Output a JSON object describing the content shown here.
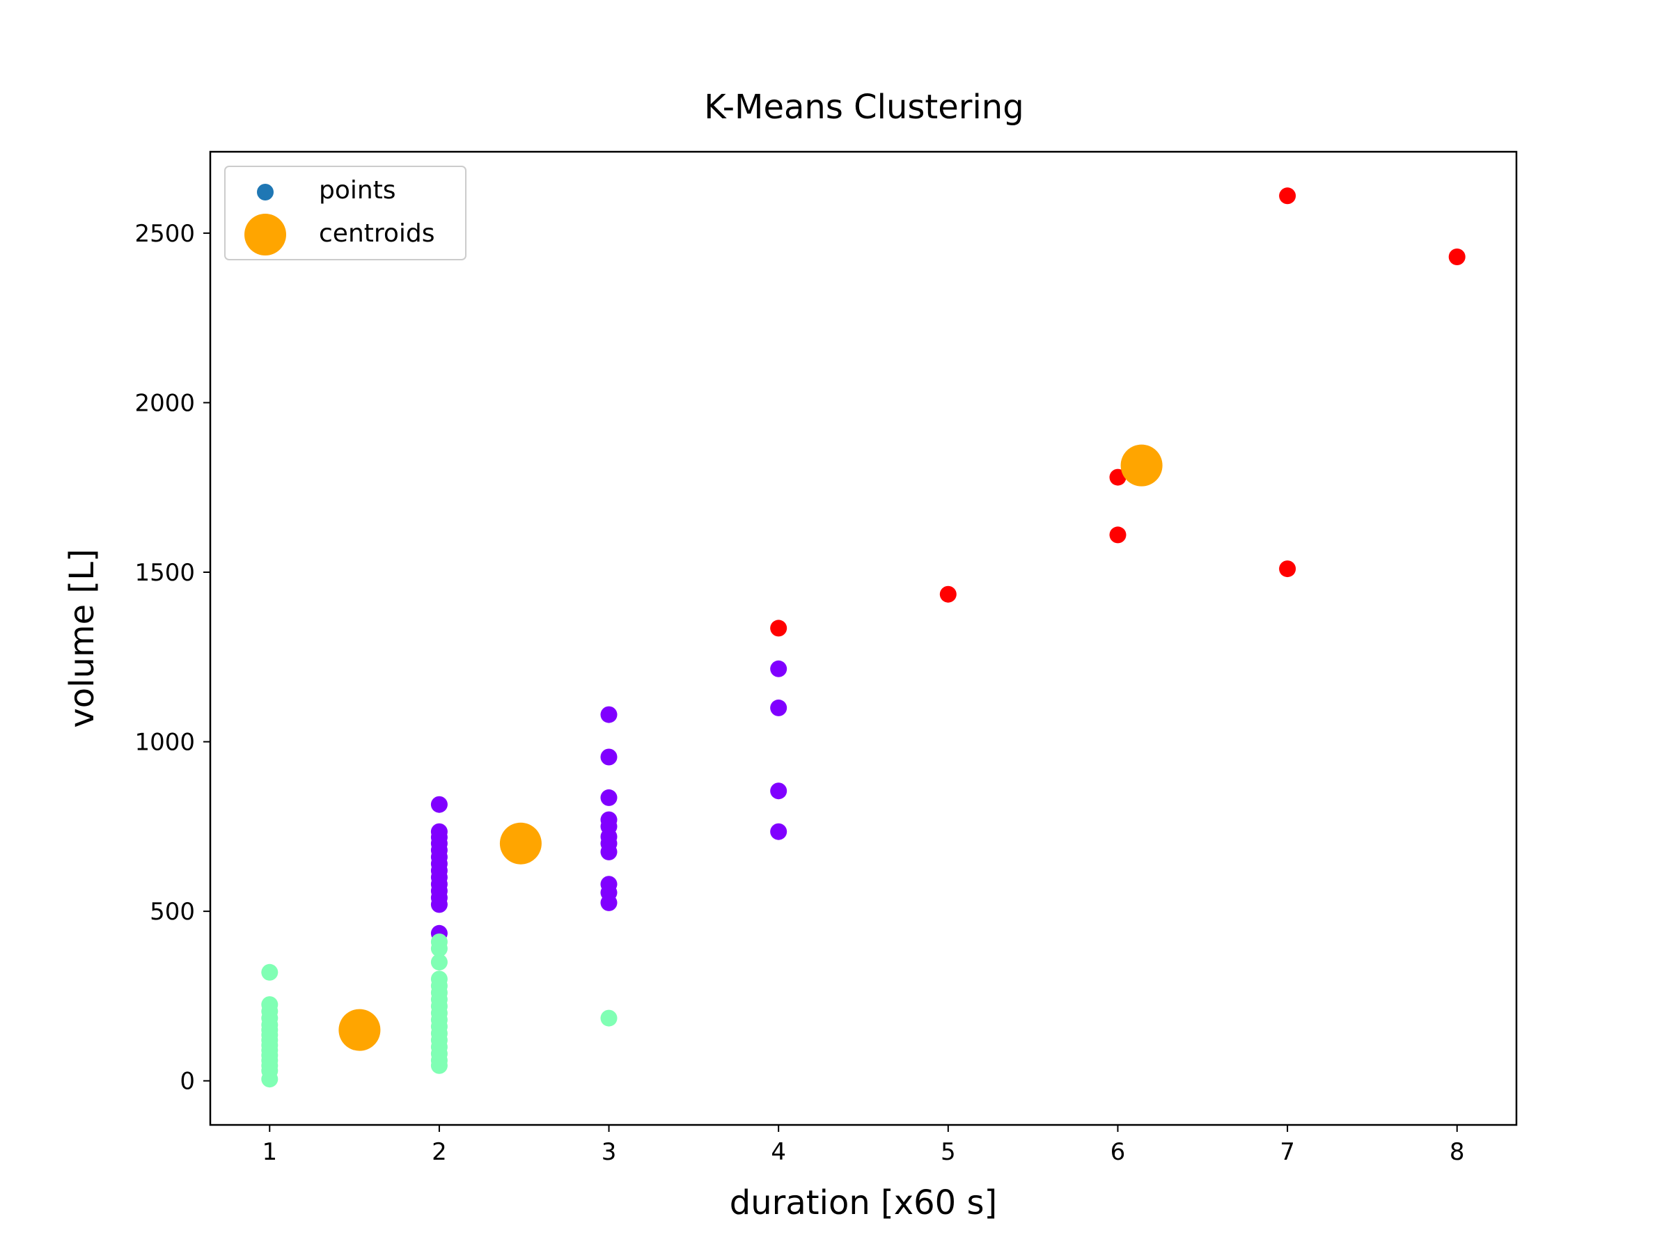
{
  "chart_data": {
    "type": "scatter",
    "title": "K-Means Clustering",
    "xlabel": "duration [x60 s]",
    "ylabel": "volume [L]",
    "xlim": [
      0.65,
      8.35
    ],
    "ylim": [
      -130,
      2740
    ],
    "xticks": [
      1,
      2,
      3,
      4,
      5,
      6,
      7,
      8
    ],
    "yticks": [
      0,
      500,
      1000,
      1500,
      2000,
      2500
    ],
    "grid": false,
    "legend": {
      "placement": "top-left",
      "entries": [
        {
          "label": "points",
          "color": "#1f77b4",
          "marker": "small"
        },
        {
          "label": "centroids",
          "color": "#ffa500",
          "marker": "large"
        }
      ]
    },
    "colors": {
      "cluster_0": "#8000ff",
      "cluster_1": "#80ffb4",
      "cluster_2": "#ff0000",
      "centroid": "#ffa500"
    },
    "series": [
      {
        "cluster": "cluster_0",
        "points": [
          [
            2,
            815
          ],
          [
            2,
            735
          ],
          [
            2,
            718
          ],
          [
            2,
            700
          ],
          [
            2,
            680
          ],
          [
            2,
            660
          ],
          [
            2,
            640
          ],
          [
            2,
            620
          ],
          [
            2,
            600
          ],
          [
            2,
            580
          ],
          [
            2,
            560
          ],
          [
            2,
            540
          ],
          [
            2,
            520
          ],
          [
            2,
            435
          ],
          [
            3,
            1080
          ],
          [
            3,
            955
          ],
          [
            3,
            835
          ],
          [
            3,
            770
          ],
          [
            3,
            750
          ],
          [
            3,
            720
          ],
          [
            3,
            700
          ],
          [
            3,
            675
          ],
          [
            3,
            580
          ],
          [
            3,
            555
          ],
          [
            3,
            525
          ],
          [
            4,
            1215
          ],
          [
            4,
            1100
          ],
          [
            4,
            855
          ],
          [
            4,
            735
          ]
        ]
      },
      {
        "cluster": "cluster_1",
        "points": [
          [
            1,
            320
          ],
          [
            1,
            225
          ],
          [
            1,
            205
          ],
          [
            1,
            185
          ],
          [
            1,
            165
          ],
          [
            1,
            150
          ],
          [
            1,
            135
          ],
          [
            1,
            120
          ],
          [
            1,
            105
          ],
          [
            1,
            90
          ],
          [
            1,
            75
          ],
          [
            1,
            60
          ],
          [
            1,
            45
          ],
          [
            1,
            30
          ],
          [
            1,
            5
          ],
          [
            2,
            410
          ],
          [
            2,
            390
          ],
          [
            2,
            350
          ],
          [
            2,
            300
          ],
          [
            2,
            280
          ],
          [
            2,
            260
          ],
          [
            2,
            240
          ],
          [
            2,
            220
          ],
          [
            2,
            200
          ],
          [
            2,
            180
          ],
          [
            2,
            160
          ],
          [
            2,
            140
          ],
          [
            2,
            120
          ],
          [
            2,
            100
          ],
          [
            2,
            80
          ],
          [
            2,
            60
          ],
          [
            2,
            45
          ],
          [
            3,
            185
          ]
        ]
      },
      {
        "cluster": "cluster_2",
        "points": [
          [
            4,
            1335
          ],
          [
            5,
            1435
          ],
          [
            6,
            1780
          ],
          [
            6,
            1610
          ],
          [
            7,
            2610
          ],
          [
            7,
            1510
          ],
          [
            8,
            2430
          ]
        ]
      }
    ],
    "centroids": [
      [
        1.53,
        150
      ],
      [
        2.48,
        700
      ],
      [
        6.14,
        1815
      ]
    ]
  }
}
